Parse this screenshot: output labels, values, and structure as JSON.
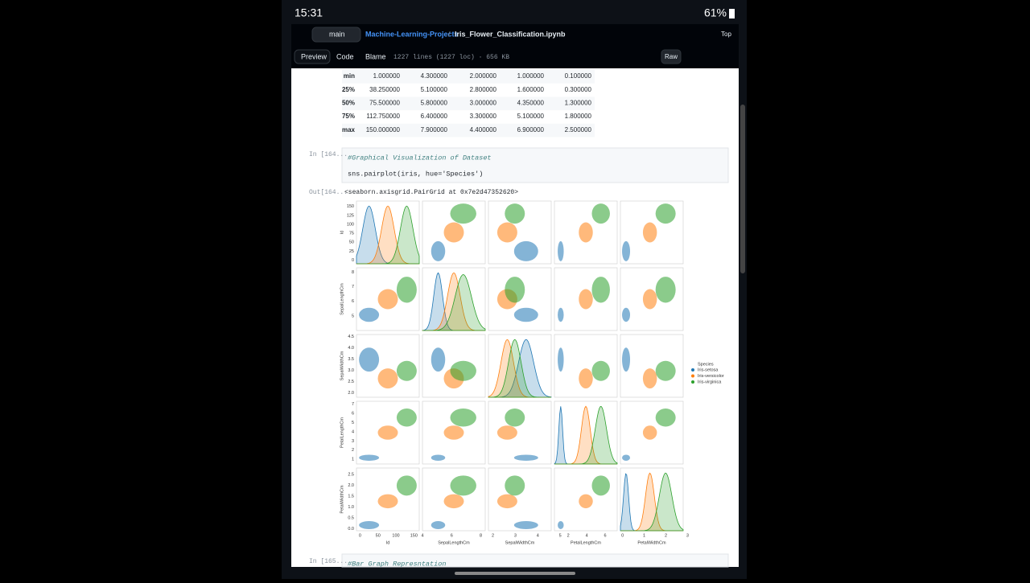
{
  "status": {
    "time": "15:31",
    "battery": "61%"
  },
  "header": {
    "branch": "main",
    "repo": "Machine-Learning-Projects",
    "separator": "/",
    "file": "Iris_Flower_Classification.ipynb",
    "top": "Top"
  },
  "toolbar": {
    "tabs": [
      "Preview",
      "Code",
      "Blame"
    ],
    "info": "1227 lines (1227 loc) · 656 KB",
    "raw": "Raw"
  },
  "table": {
    "rows": [
      [
        "min",
        "1.000000",
        "4.300000",
        "2.000000",
        "1.000000",
        "0.100000"
      ],
      [
        "25%",
        "38.250000",
        "5.100000",
        "2.800000",
        "1.600000",
        "0.300000"
      ],
      [
        "50%",
        "75.500000",
        "5.800000",
        "3.000000",
        "4.350000",
        "1.300000"
      ],
      [
        "75%",
        "112.750000",
        "6.400000",
        "3.300000",
        "5.100000",
        "1.800000"
      ],
      [
        "max",
        "150.000000",
        "7.900000",
        "4.400000",
        "6.900000",
        "2.500000"
      ]
    ]
  },
  "cell": {
    "prompt": "In [164...",
    "code": [
      "#Graphical Visualization of Dataset",
      "sns.pairplot(iris, hue='Species')"
    ]
  },
  "output": {
    "prompt": "Out[164...",
    "text": "<seaborn.axisgrid.PairGrid at 0x7e2d47352620>"
  },
  "pairplot": {
    "variables": [
      {
        "name": "Id",
        "yticks": [
          "0",
          "25",
          "50",
          "75",
          "100",
          "125",
          "150"
        ],
        "xticks": [
          "0",
          "50",
          "100",
          "150"
        ]
      },
      {
        "name": "SepalLengthCm",
        "yticks": [
          "5",
          "6",
          "7",
          "8"
        ],
        "xticks": [
          "4",
          "6",
          "8"
        ]
      },
      {
        "name": "SepalWidthCm",
        "yticks": [
          "2.0",
          "2.5",
          "3.0",
          "3.5",
          "4.0",
          "4.5"
        ],
        "xticks": [
          "2",
          "3",
          "4",
          "5"
        ]
      },
      {
        "name": "PetalLengthCm",
        "yticks": [
          "1",
          "2",
          "3",
          "4",
          "5",
          "6",
          "7"
        ],
        "xticks": [
          "2",
          "4",
          "6"
        ]
      },
      {
        "name": "PetalWidthCm",
        "yticks": [
          "0.0",
          "0.5",
          "1.0",
          "1.5",
          "2.0",
          "2.5"
        ],
        "xticks": [
          "0",
          "1",
          "2",
          "3"
        ]
      }
    ],
    "legend": {
      "title": "Species",
      "entries": [
        {
          "name": "Iris-setosa",
          "color": "#1f77b4"
        },
        {
          "name": "Iris-versicolor",
          "color": "#ff7f0e"
        },
        {
          "name": "Iris-virginica",
          "color": "#2ca02c"
        }
      ]
    }
  },
  "next_cell": {
    "prompt": "In [165...",
    "code": "#Bar Graph Represntation"
  }
}
